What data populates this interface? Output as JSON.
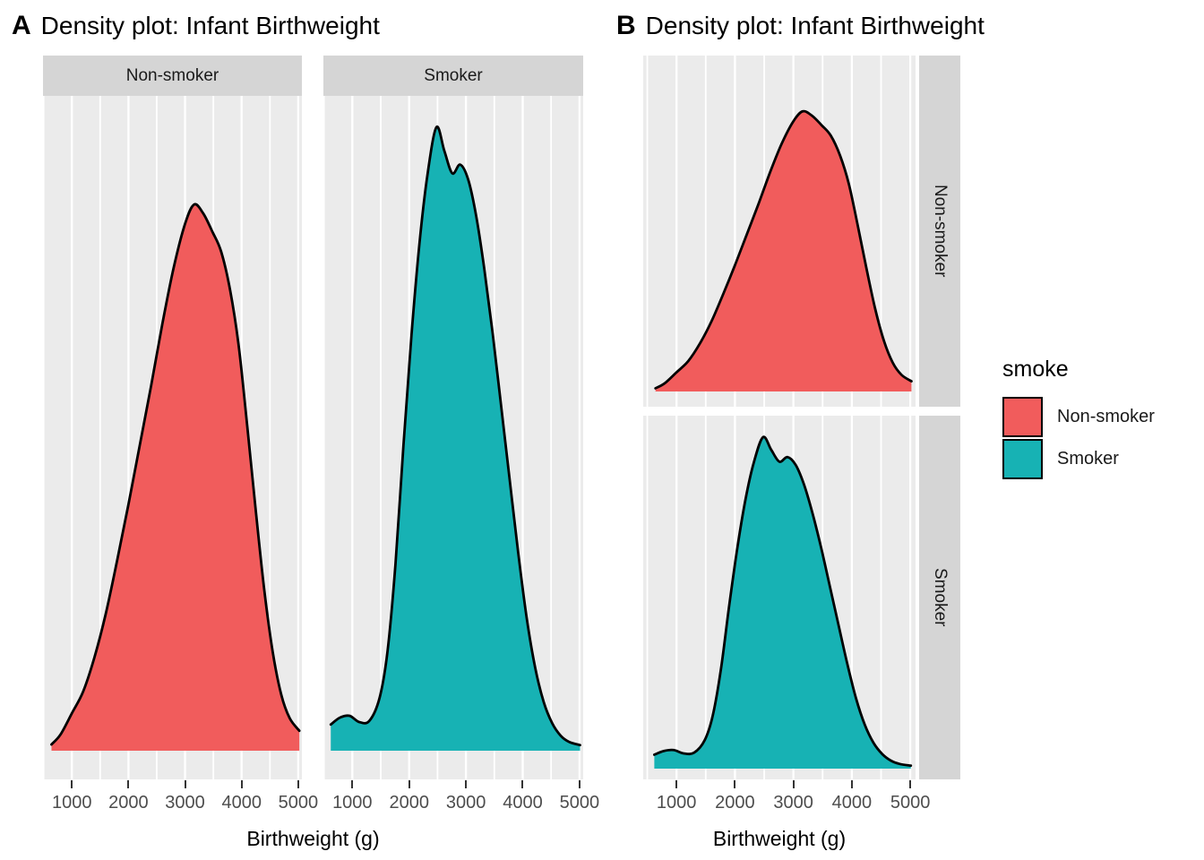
{
  "colors": {
    "non_smoker_fill": "#F15C5C",
    "smoker_fill": "#17B2B4",
    "panel_background": "#EBEBEB",
    "strip_background": "#D5D5D5",
    "gridline": "#FFFFFF",
    "curve_outline": "#000000",
    "axis_text": "#4D4D4D",
    "tick_mark": "#333333"
  },
  "figures": [
    {
      "tag": "A",
      "title": "Density plot: Infant Birthweight",
      "facets": [
        {
          "label": "Non-smoker",
          "series": "Non-smoker"
        },
        {
          "label": "Smoker",
          "series": "Smoker"
        }
      ],
      "x_axis": {
        "title": "Birthweight (g)",
        "tick_values": [
          1000,
          2000,
          3000,
          4000,
          5000
        ],
        "tick_labels": [
          "1000",
          "2000",
          "3000",
          "4000",
          "5000"
        ]
      }
    },
    {
      "tag": "B",
      "title": "Density plot: Infant Birthweight",
      "facets": [
        {
          "label": "Non-smoker",
          "series": "Non-smoker"
        },
        {
          "label": "Smoker",
          "series": "Smoker"
        }
      ],
      "x_axis": {
        "title": "Birthweight (g)",
        "tick_values": [
          1000,
          2000,
          3000,
          4000,
          5000
        ],
        "tick_labels": [
          "1000",
          "2000",
          "3000",
          "4000",
          "5000"
        ]
      }
    }
  ],
  "legend": {
    "title": "smoke",
    "entries": [
      {
        "label": "Non-smoker",
        "color": "#F15C5C"
      },
      {
        "label": "Smoker",
        "color": "#17B2B4"
      }
    ]
  },
  "chart_data": {
    "type": "area",
    "subtype": "kernel-density",
    "titles": [
      "A Density plot: Infant Birthweight",
      "B Density plot: Infant Birthweight"
    ],
    "xlabel": "Birthweight (g)",
    "x_ticks": [
      1000,
      2000,
      3000,
      4000,
      5000
    ],
    "x_gridlines_minor": [
      500,
      1500,
      2500,
      3500,
      4500
    ],
    "x_domain_panels_a": [
      490,
      5065
    ],
    "x_domain_panels_b": [
      430,
      5090
    ],
    "y_axis_shown": false,
    "y_units": "density (relative, max of Smoker peak = 1.0)",
    "legend_title": "smoke",
    "facet_labels": [
      "Non-smoker",
      "Smoker"
    ],
    "series": [
      {
        "name": "Non-smoker",
        "color": "#F15C5C",
        "peak_x": 3160,
        "peak_density_rel": 0.876,
        "x": [
          640,
          800,
          1000,
          1200,
          1400,
          1600,
          1800,
          2000,
          2200,
          2400,
          2600,
          2800,
          3000,
          3160,
          3320,
          3480,
          3640,
          3800,
          3950,
          4100,
          4250,
          4400,
          4550,
          4700,
          4850,
          5020
        ],
        "density_rel": [
          0.01,
          0.026,
          0.06,
          0.095,
          0.15,
          0.22,
          0.305,
          0.395,
          0.49,
          0.585,
          0.685,
          0.775,
          0.845,
          0.876,
          0.862,
          0.833,
          0.8,
          0.737,
          0.648,
          0.52,
          0.385,
          0.258,
          0.158,
          0.09,
          0.052,
          0.032
        ]
      },
      {
        "name": "Smoker",
        "color": "#17B2B4",
        "peak_x": 2480,
        "peak_density_rel": 1.0,
        "x": [
          620,
          780,
          950,
          1120,
          1300,
          1480,
          1620,
          1760,
          1900,
          2040,
          2180,
          2320,
          2480,
          2620,
          2760,
          2900,
          3040,
          3180,
          3320,
          3470,
          3620,
          3770,
          3920,
          4070,
          4220,
          4370,
          4520,
          4670,
          4820,
          5010
        ],
        "density_rel": [
          0.042,
          0.053,
          0.056,
          0.046,
          0.048,
          0.085,
          0.16,
          0.3,
          0.49,
          0.665,
          0.812,
          0.922,
          1.0,
          0.962,
          0.926,
          0.94,
          0.916,
          0.858,
          0.775,
          0.67,
          0.553,
          0.435,
          0.318,
          0.213,
          0.133,
          0.078,
          0.044,
          0.024,
          0.014,
          0.009
        ]
      }
    ]
  }
}
